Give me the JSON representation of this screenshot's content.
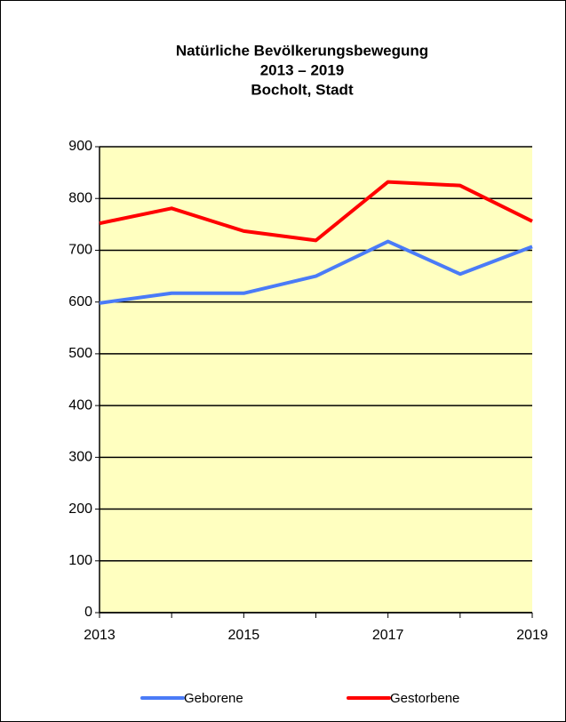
{
  "chart_data": {
    "type": "line",
    "title": [
      "Natürliche Bevölkerungsbewegung",
      "2013 – 2019",
      "Bocholt, Stadt"
    ],
    "x": [
      2013,
      2014,
      2015,
      2016,
      2017,
      2018,
      2019
    ],
    "xlim": [
      2013,
      2019
    ],
    "xticks": [
      2013,
      2015,
      2017,
      2019
    ],
    "ylim": [
      0,
      900
    ],
    "yticks": [
      0,
      100,
      200,
      300,
      400,
      500,
      600,
      700,
      800,
      900
    ],
    "grid": true,
    "legend": "bottom",
    "series": [
      {
        "name": "Geborene",
        "color": "#4a7bf7",
        "values": [
          598,
          617,
          617,
          650,
          717,
          654,
          707
        ]
      },
      {
        "name": "Gestorbene",
        "color": "#ff0000",
        "values": [
          752,
          781,
          737,
          719,
          832,
          825,
          756
        ]
      }
    ]
  }
}
